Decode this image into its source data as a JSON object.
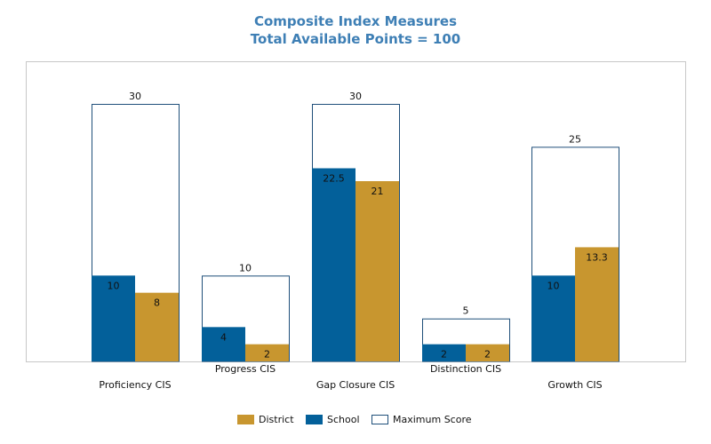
{
  "title_line1": "Composite Index Measures",
  "title_line2": "Total Available Points = 100",
  "colors": {
    "district": "#c8962f",
    "school": "#03609a",
    "max_fill": "#ffffff",
    "max_border": "#1f4f7a",
    "frame": "#c8c8c8"
  },
  "legend": {
    "district": "District",
    "school": "School",
    "max": "Maximum Score"
  },
  "chart_data": {
    "type": "bar",
    "title": "Composite Index Measures",
    "subtitle": "Total Available Points = 100",
    "categories": [
      "Proficiency CIS",
      "Progress CIS",
      "Gap Closure CIS",
      "Distinction CIS",
      "Growth CIS"
    ],
    "series": [
      {
        "name": "Maximum Score",
        "values": [
          30,
          10,
          30,
          5,
          25
        ]
      },
      {
        "name": "School",
        "values": [
          10,
          4,
          22.5,
          2,
          10
        ]
      },
      {
        "name": "District",
        "values": [
          8,
          2,
          21,
          2,
          13.3
        ]
      }
    ],
    "ylim": [
      0,
      30
    ],
    "grid": false,
    "legend_position": "bottom"
  }
}
